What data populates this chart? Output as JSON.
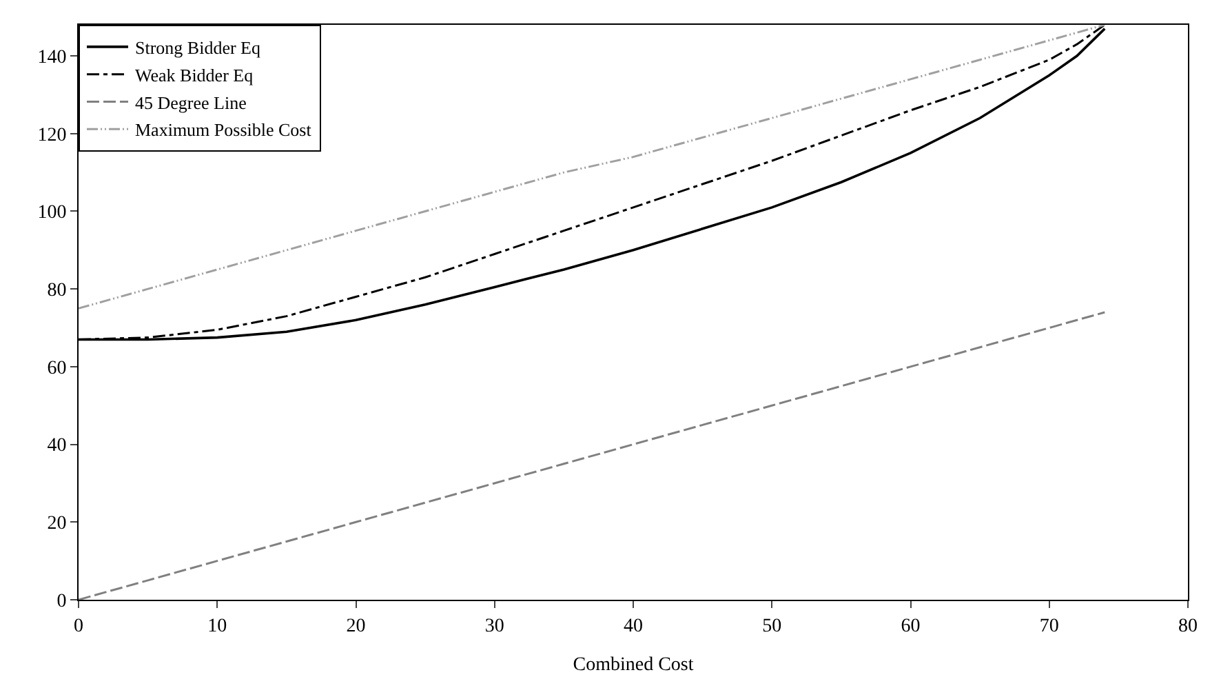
{
  "chart_data": {
    "type": "line",
    "xlabel": "Combined Cost",
    "x": [
      0,
      5,
      10,
      15,
      20,
      25,
      30,
      35,
      40,
      45,
      50,
      55,
      60,
      65,
      70,
      72,
      74
    ],
    "series": [
      {
        "name": "Strong Bidder Eq",
        "color": "#000000",
        "line_style": "solid",
        "values": [
          67,
          67,
          67.5,
          69,
          72,
          76,
          80.5,
          85,
          90,
          95.5,
          101,
          107.5,
          115,
          124,
          135,
          140,
          147
        ]
      },
      {
        "name": "Weak Bidder Eq",
        "color": "#000000",
        "line_style": "dashdot",
        "values": [
          67,
          67.5,
          69.5,
          73,
          78,
          83,
          89,
          95,
          101,
          107,
          113,
          119.5,
          126,
          132,
          139,
          143,
          148
        ]
      },
      {
        "name": "45 Degree Line",
        "color": "#808080",
        "line_style": "dashed",
        "values": [
          0,
          5,
          10,
          15,
          20,
          25,
          30,
          35,
          40,
          45,
          50,
          55,
          60,
          65,
          70,
          72,
          74
        ]
      },
      {
        "name": "Maximum Possible Cost",
        "color": "#a0a0a0",
        "line_style": "dotted",
        "values": [
          75,
          80,
          85,
          90,
          95,
          100,
          105,
          110,
          114,
          119,
          124,
          129,
          134,
          139,
          144,
          146,
          148
        ]
      }
    ],
    "xlim": [
      0,
      80
    ],
    "xticks": [
      0,
      10,
      20,
      30,
      40,
      50,
      60,
      70,
      80
    ],
    "ylim": [
      0,
      148
    ],
    "yticks": [
      0,
      20,
      40,
      60,
      80,
      100,
      120,
      140
    ],
    "legend": "top left",
    "grid": false,
    "marker": "none"
  }
}
